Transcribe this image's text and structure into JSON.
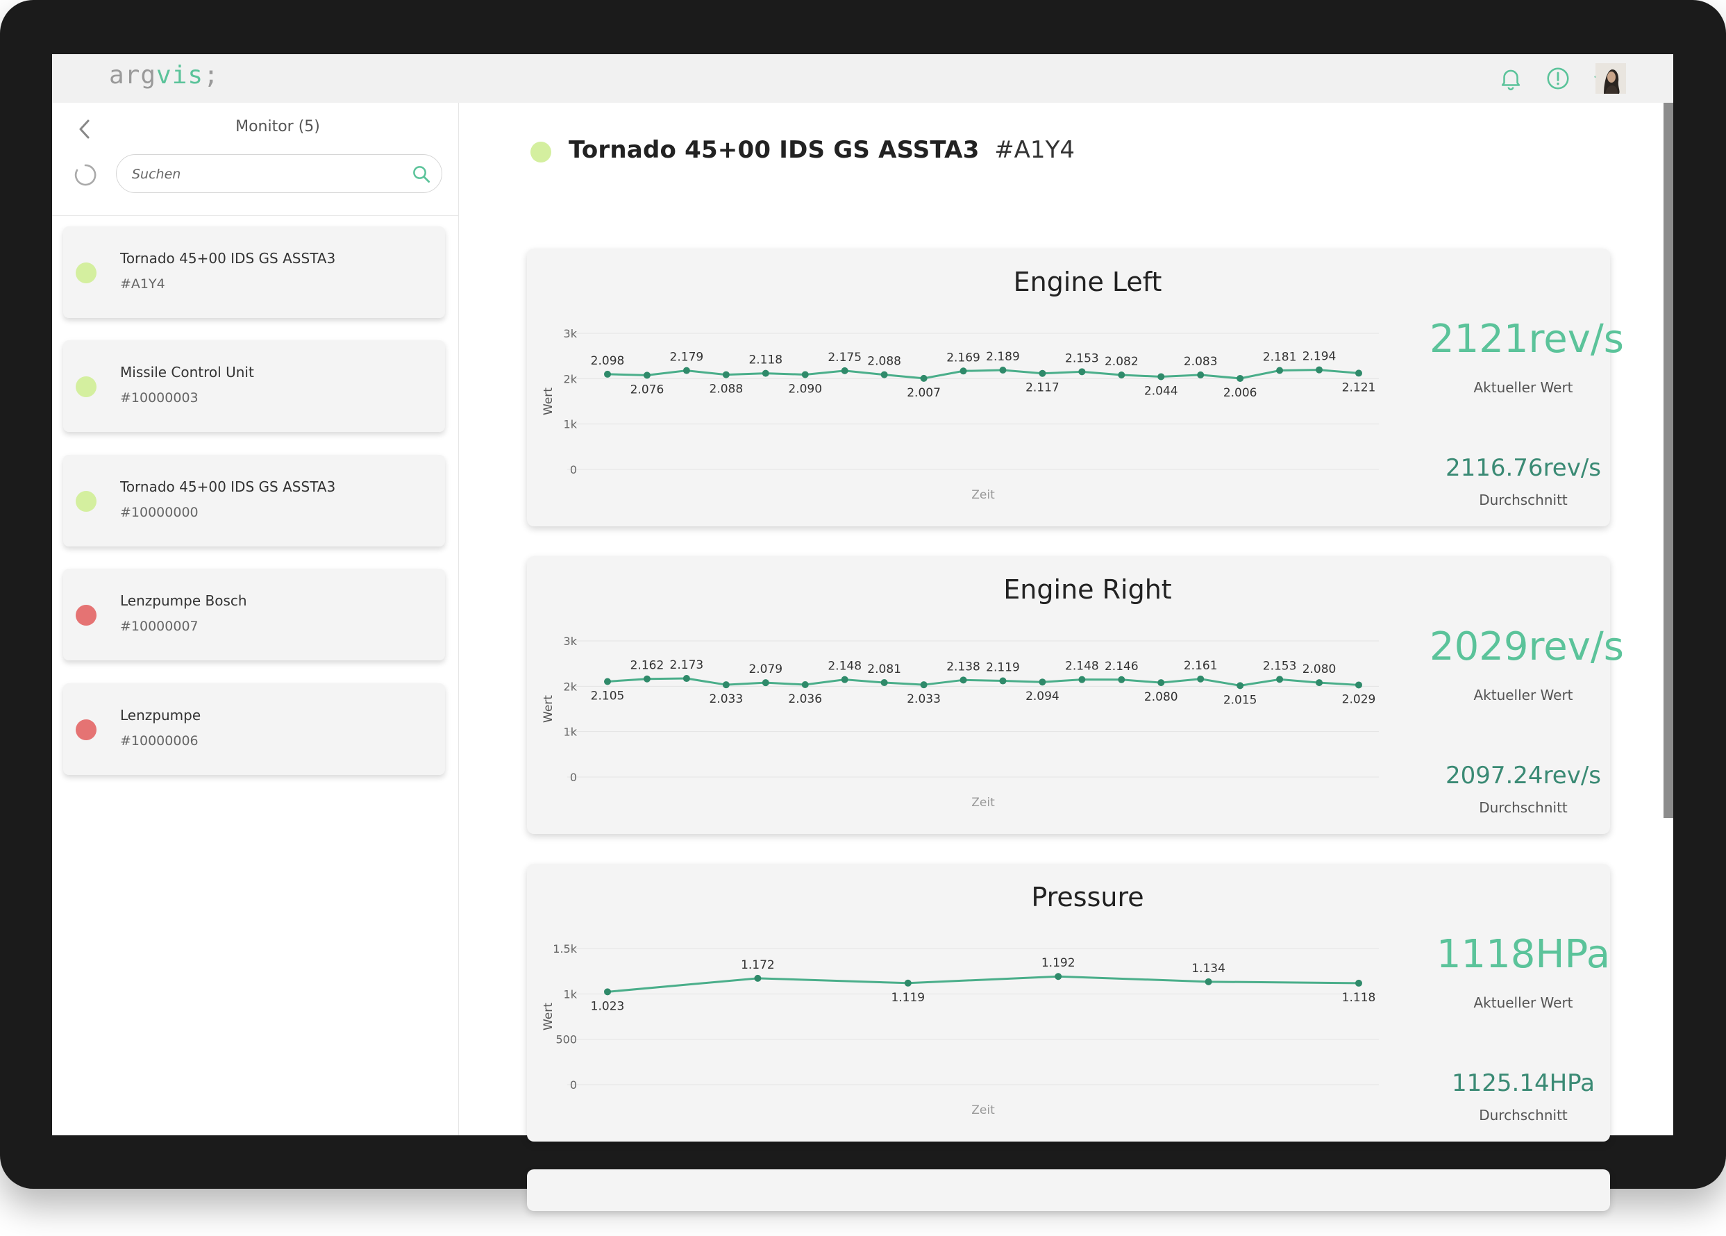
{
  "app": {
    "logo_prefix": "arg",
    "logo_accent": "vis",
    "logo_suffix": ";",
    "topbar_icons": [
      "bell-icon",
      "alert-circle-icon",
      "send-icon",
      "user-avatar"
    ]
  },
  "colors": {
    "accent": "#5bc39a",
    "status_ok": "#d4ef9f",
    "status_error": "#e57373",
    "line": "#4aae8a"
  },
  "sidebar": {
    "title": "Monitor (5)",
    "search_placeholder": "Suchen",
    "items": [
      {
        "name": "Tornado 45+00 IDS GS ASSTA3",
        "id": "#A1Y4",
        "status": "ok"
      },
      {
        "name": "Missile Control Unit",
        "id": "#10000003",
        "status": "ok"
      },
      {
        "name": "Tornado 45+00 IDS GS ASSTA3",
        "id": "#10000000",
        "status": "ok"
      },
      {
        "name": "Lenzpumpe Bosch",
        "id": "#10000007",
        "status": "error"
      },
      {
        "name": "Lenzpumpe",
        "id": "#10000006",
        "status": "error"
      }
    ]
  },
  "device": {
    "name": "Tornado 45+00 IDS GS ASSTA3",
    "id": "#A1Y4"
  },
  "chart_data": [
    {
      "type": "line",
      "title": "Engine Left",
      "xlabel": "Zeit",
      "ylabel": "Wert",
      "yticks": [
        "0",
        "1k",
        "2k",
        "3k"
      ],
      "ylim": [
        0,
        3000
      ],
      "values": [
        2098,
        2076,
        2179,
        2088,
        2118,
        2090,
        2175,
        2088,
        2007,
        2169,
        2189,
        2117,
        2153,
        2082,
        2044,
        2083,
        2006,
        2181,
        2194,
        2121
      ],
      "labels": [
        "2.098",
        "2.076",
        "2.179",
        "2.088",
        "2.118",
        "2.090",
        "2.175",
        "2.088",
        "2.007",
        "2.169",
        "2.189",
        "2.117",
        "2.153",
        "2.082",
        "2.044",
        "2.083",
        "2.006",
        "2.181",
        "2.194",
        "2.121"
      ],
      "label_pos": [
        "above",
        "below",
        "above",
        "below",
        "above",
        "below",
        "above",
        "above",
        "below",
        "above",
        "above",
        "below",
        "above",
        "above",
        "below",
        "above",
        "below",
        "above",
        "above",
        "below"
      ],
      "current": "2121rev/s",
      "current_label": "Aktueller Wert",
      "average": "2116.76rev/s",
      "average_label": "Durchschnitt"
    },
    {
      "type": "line",
      "title": "Engine Right",
      "xlabel": "Zeit",
      "ylabel": "Wert",
      "yticks": [
        "0",
        "1k",
        "2k",
        "3k"
      ],
      "ylim": [
        0,
        3000
      ],
      "values": [
        2105,
        2162,
        2173,
        2033,
        2079,
        2036,
        2148,
        2081,
        2033,
        2138,
        2119,
        2094,
        2148,
        2146,
        2080,
        2161,
        2015,
        2153,
        2080,
        2029
      ],
      "labels": [
        "2.105",
        "2.162",
        "2.173",
        "2.033",
        "2.079",
        "2.036",
        "2.148",
        "2.081",
        "2.033",
        "2.138",
        "2.119",
        "2.094",
        "2.148",
        "2.146",
        "2.080",
        "2.161",
        "2.015",
        "2.153",
        "2.080",
        "2.029"
      ],
      "label_pos": [
        "below",
        "above",
        "above",
        "below",
        "above",
        "below",
        "above",
        "above",
        "below",
        "above",
        "above",
        "below",
        "above",
        "above",
        "below",
        "above",
        "below",
        "above",
        "above",
        "below"
      ],
      "current": "2029rev/s",
      "current_label": "Aktueller Wert",
      "average": "2097.24rev/s",
      "average_label": "Durchschnitt"
    },
    {
      "type": "line",
      "title": "Pressure",
      "xlabel": "Zeit",
      "ylabel": "Wert",
      "yticks": [
        "0",
        "500",
        "1k",
        "1.5k"
      ],
      "ylim": [
        0,
        1500
      ],
      "values": [
        1023,
        1172,
        1119,
        1192,
        1134,
        1118
      ],
      "labels": [
        "1.023",
        "1.172",
        "1.119",
        "1.192",
        "1.134",
        "1.118"
      ],
      "label_pos": [
        "below",
        "above",
        "below",
        "above",
        "above",
        "below"
      ],
      "current": "1118HPa",
      "current_label": "Aktueller Wert",
      "average": "1125.14HPa",
      "average_label": "Durchschnitt"
    }
  ]
}
